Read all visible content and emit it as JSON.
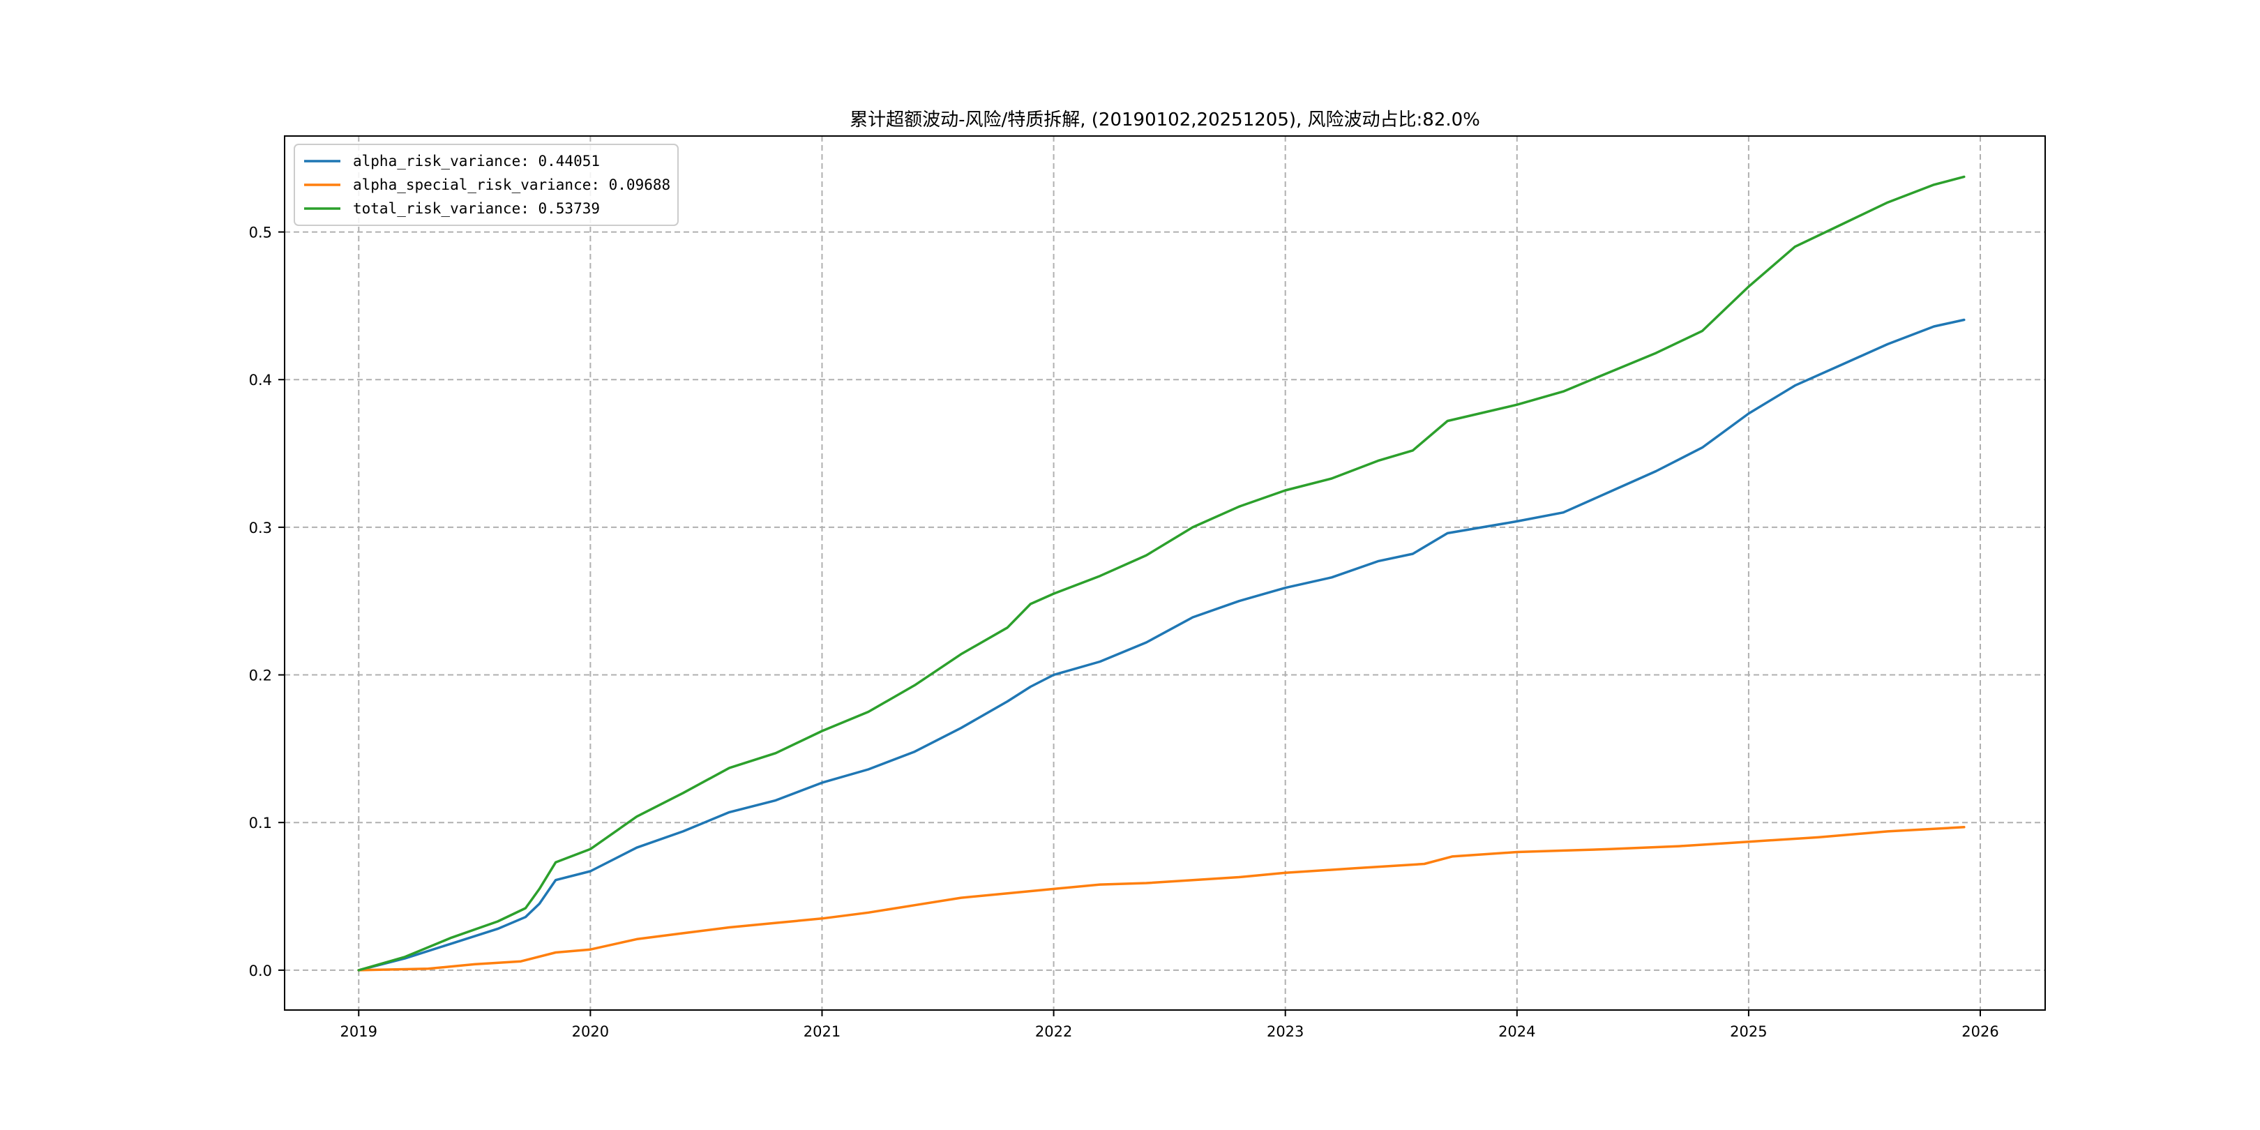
{
  "chart_data": {
    "type": "line",
    "title": "累计超额波动-风险/特质拆解, (20190102,20251205), 风险波动占比:82.0%",
    "xlabel": "",
    "ylabel": "",
    "xlim": [
      2018.68,
      2026.28
    ],
    "ylim": [
      -0.027,
      0.565
    ],
    "x_ticks": [
      2019,
      2020,
      2021,
      2022,
      2023,
      2024,
      2025,
      2026
    ],
    "x_tick_labels": [
      "2019",
      "2020",
      "2021",
      "2022",
      "2023",
      "2024",
      "2025",
      "2026"
    ],
    "y_ticks": [
      0.0,
      0.1,
      0.2,
      0.3,
      0.4,
      0.5
    ],
    "y_tick_labels": [
      "0.0",
      "0.1",
      "0.2",
      "0.3",
      "0.4",
      "0.5"
    ],
    "grid": true,
    "legend_position": "top-left",
    "series": [
      {
        "name": "alpha_risk_variance",
        "legend_label": "alpha_risk_variance: 0.44051",
        "color": "#1f77b4",
        "x": [
          2019.0,
          2019.2,
          2019.4,
          2019.6,
          2019.72,
          2019.78,
          2019.85,
          2020.0,
          2020.2,
          2020.4,
          2020.6,
          2020.8,
          2021.0,
          2021.2,
          2021.4,
          2021.6,
          2021.8,
          2021.9,
          2022.0,
          2022.2,
          2022.4,
          2022.6,
          2022.8,
          2023.0,
          2023.2,
          2023.4,
          2023.55,
          2023.7,
          2024.0,
          2024.2,
          2024.4,
          2024.6,
          2024.8,
          2025.0,
          2025.2,
          2025.4,
          2025.6,
          2025.8,
          2025.93
        ],
        "y": [
          0.0,
          0.008,
          0.018,
          0.028,
          0.036,
          0.045,
          0.061,
          0.067,
          0.083,
          0.094,
          0.107,
          0.115,
          0.127,
          0.136,
          0.148,
          0.164,
          0.182,
          0.192,
          0.2,
          0.209,
          0.222,
          0.239,
          0.25,
          0.259,
          0.266,
          0.277,
          0.282,
          0.296,
          0.304,
          0.31,
          0.324,
          0.338,
          0.354,
          0.377,
          0.396,
          0.41,
          0.424,
          0.436,
          0.44051
        ]
      },
      {
        "name": "alpha_special_risk_variance",
        "legend_label": "alpha_special_risk_variance: 0.09688",
        "color": "#ff7f0e",
        "x": [
          2019.0,
          2019.3,
          2019.5,
          2019.7,
          2019.85,
          2020.0,
          2020.2,
          2020.4,
          2020.6,
          2020.8,
          2021.0,
          2021.2,
          2021.4,
          2021.6,
          2021.8,
          2022.0,
          2022.2,
          2022.4,
          2022.6,
          2022.8,
          2023.0,
          2023.3,
          2023.6,
          2023.72,
          2024.0,
          2024.2,
          2024.4,
          2024.7,
          2025.0,
          2025.3,
          2025.6,
          2025.93
        ],
        "y": [
          0.0,
          0.001,
          0.004,
          0.006,
          0.012,
          0.014,
          0.021,
          0.025,
          0.029,
          0.032,
          0.035,
          0.039,
          0.044,
          0.049,
          0.052,
          0.055,
          0.058,
          0.059,
          0.061,
          0.063,
          0.066,
          0.069,
          0.072,
          0.077,
          0.08,
          0.081,
          0.082,
          0.084,
          0.087,
          0.09,
          0.094,
          0.09688
        ]
      },
      {
        "name": "total_risk_variance",
        "legend_label": "total_risk_variance: 0.53739",
        "color": "#2ca02c",
        "x": [
          2019.0,
          2019.2,
          2019.4,
          2019.6,
          2019.72,
          2019.78,
          2019.85,
          2020.0,
          2020.2,
          2020.4,
          2020.6,
          2020.8,
          2021.0,
          2021.2,
          2021.4,
          2021.6,
          2021.8,
          2021.9,
          2022.0,
          2022.2,
          2022.4,
          2022.6,
          2022.8,
          2023.0,
          2023.2,
          2023.4,
          2023.55,
          2023.7,
          2024.0,
          2024.2,
          2024.4,
          2024.6,
          2024.8,
          2025.0,
          2025.2,
          2025.4,
          2025.6,
          2025.8,
          2025.93
        ],
        "y": [
          0.0,
          0.009,
          0.022,
          0.033,
          0.042,
          0.055,
          0.073,
          0.082,
          0.104,
          0.12,
          0.137,
          0.147,
          0.162,
          0.175,
          0.193,
          0.214,
          0.232,
          0.248,
          0.255,
          0.267,
          0.281,
          0.3,
          0.314,
          0.325,
          0.333,
          0.345,
          0.352,
          0.372,
          0.383,
          0.392,
          0.405,
          0.418,
          0.433,
          0.463,
          0.49,
          0.505,
          0.52,
          0.532,
          0.53739
        ]
      }
    ]
  }
}
